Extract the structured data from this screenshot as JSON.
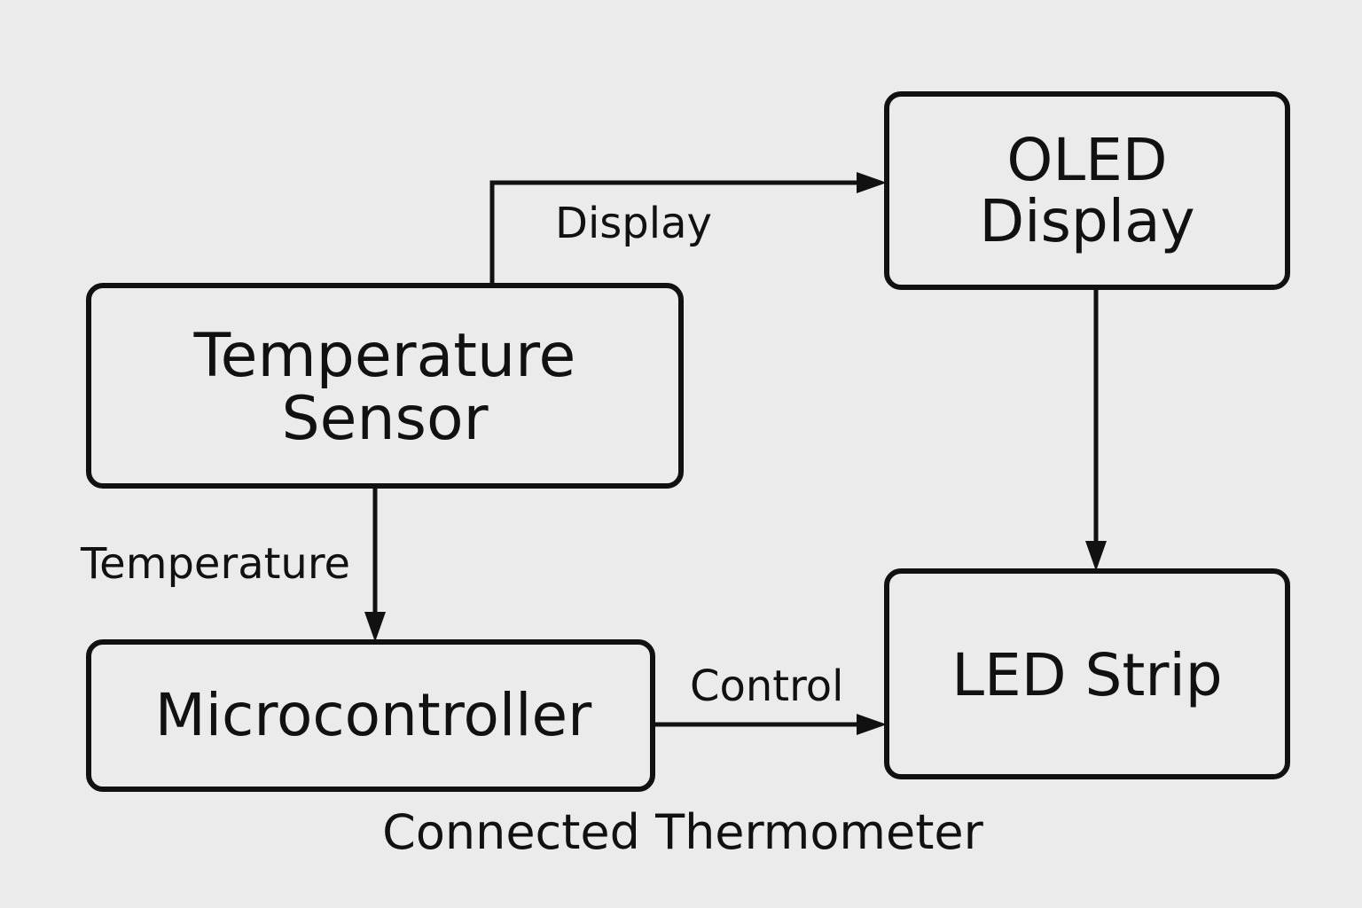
{
  "background_color": "#ebebeb",
  "stroke_color": "#111111",
  "nodes": {
    "temperature_sensor": {
      "line1": "Temperature",
      "line2": "Sensor"
    },
    "oled_display": {
      "line1": "OLED",
      "line2": "Display"
    },
    "microcontroller": {
      "line1": "Microcontroller"
    },
    "led_strip": {
      "line1": "LED Strip"
    }
  },
  "edges": {
    "display": {
      "label": "Display",
      "from": "temperature_sensor",
      "to": "oled_display"
    },
    "temperature": {
      "label": "Temperature",
      "from": "temperature_sensor",
      "to": "microcontroller"
    },
    "control": {
      "label": "Control",
      "from": "microcontroller",
      "to": "led_strip"
    },
    "oled_to_led": {
      "label": "",
      "from": "oled_display",
      "to": "led_strip"
    }
  },
  "title": "Connected Thermometer"
}
